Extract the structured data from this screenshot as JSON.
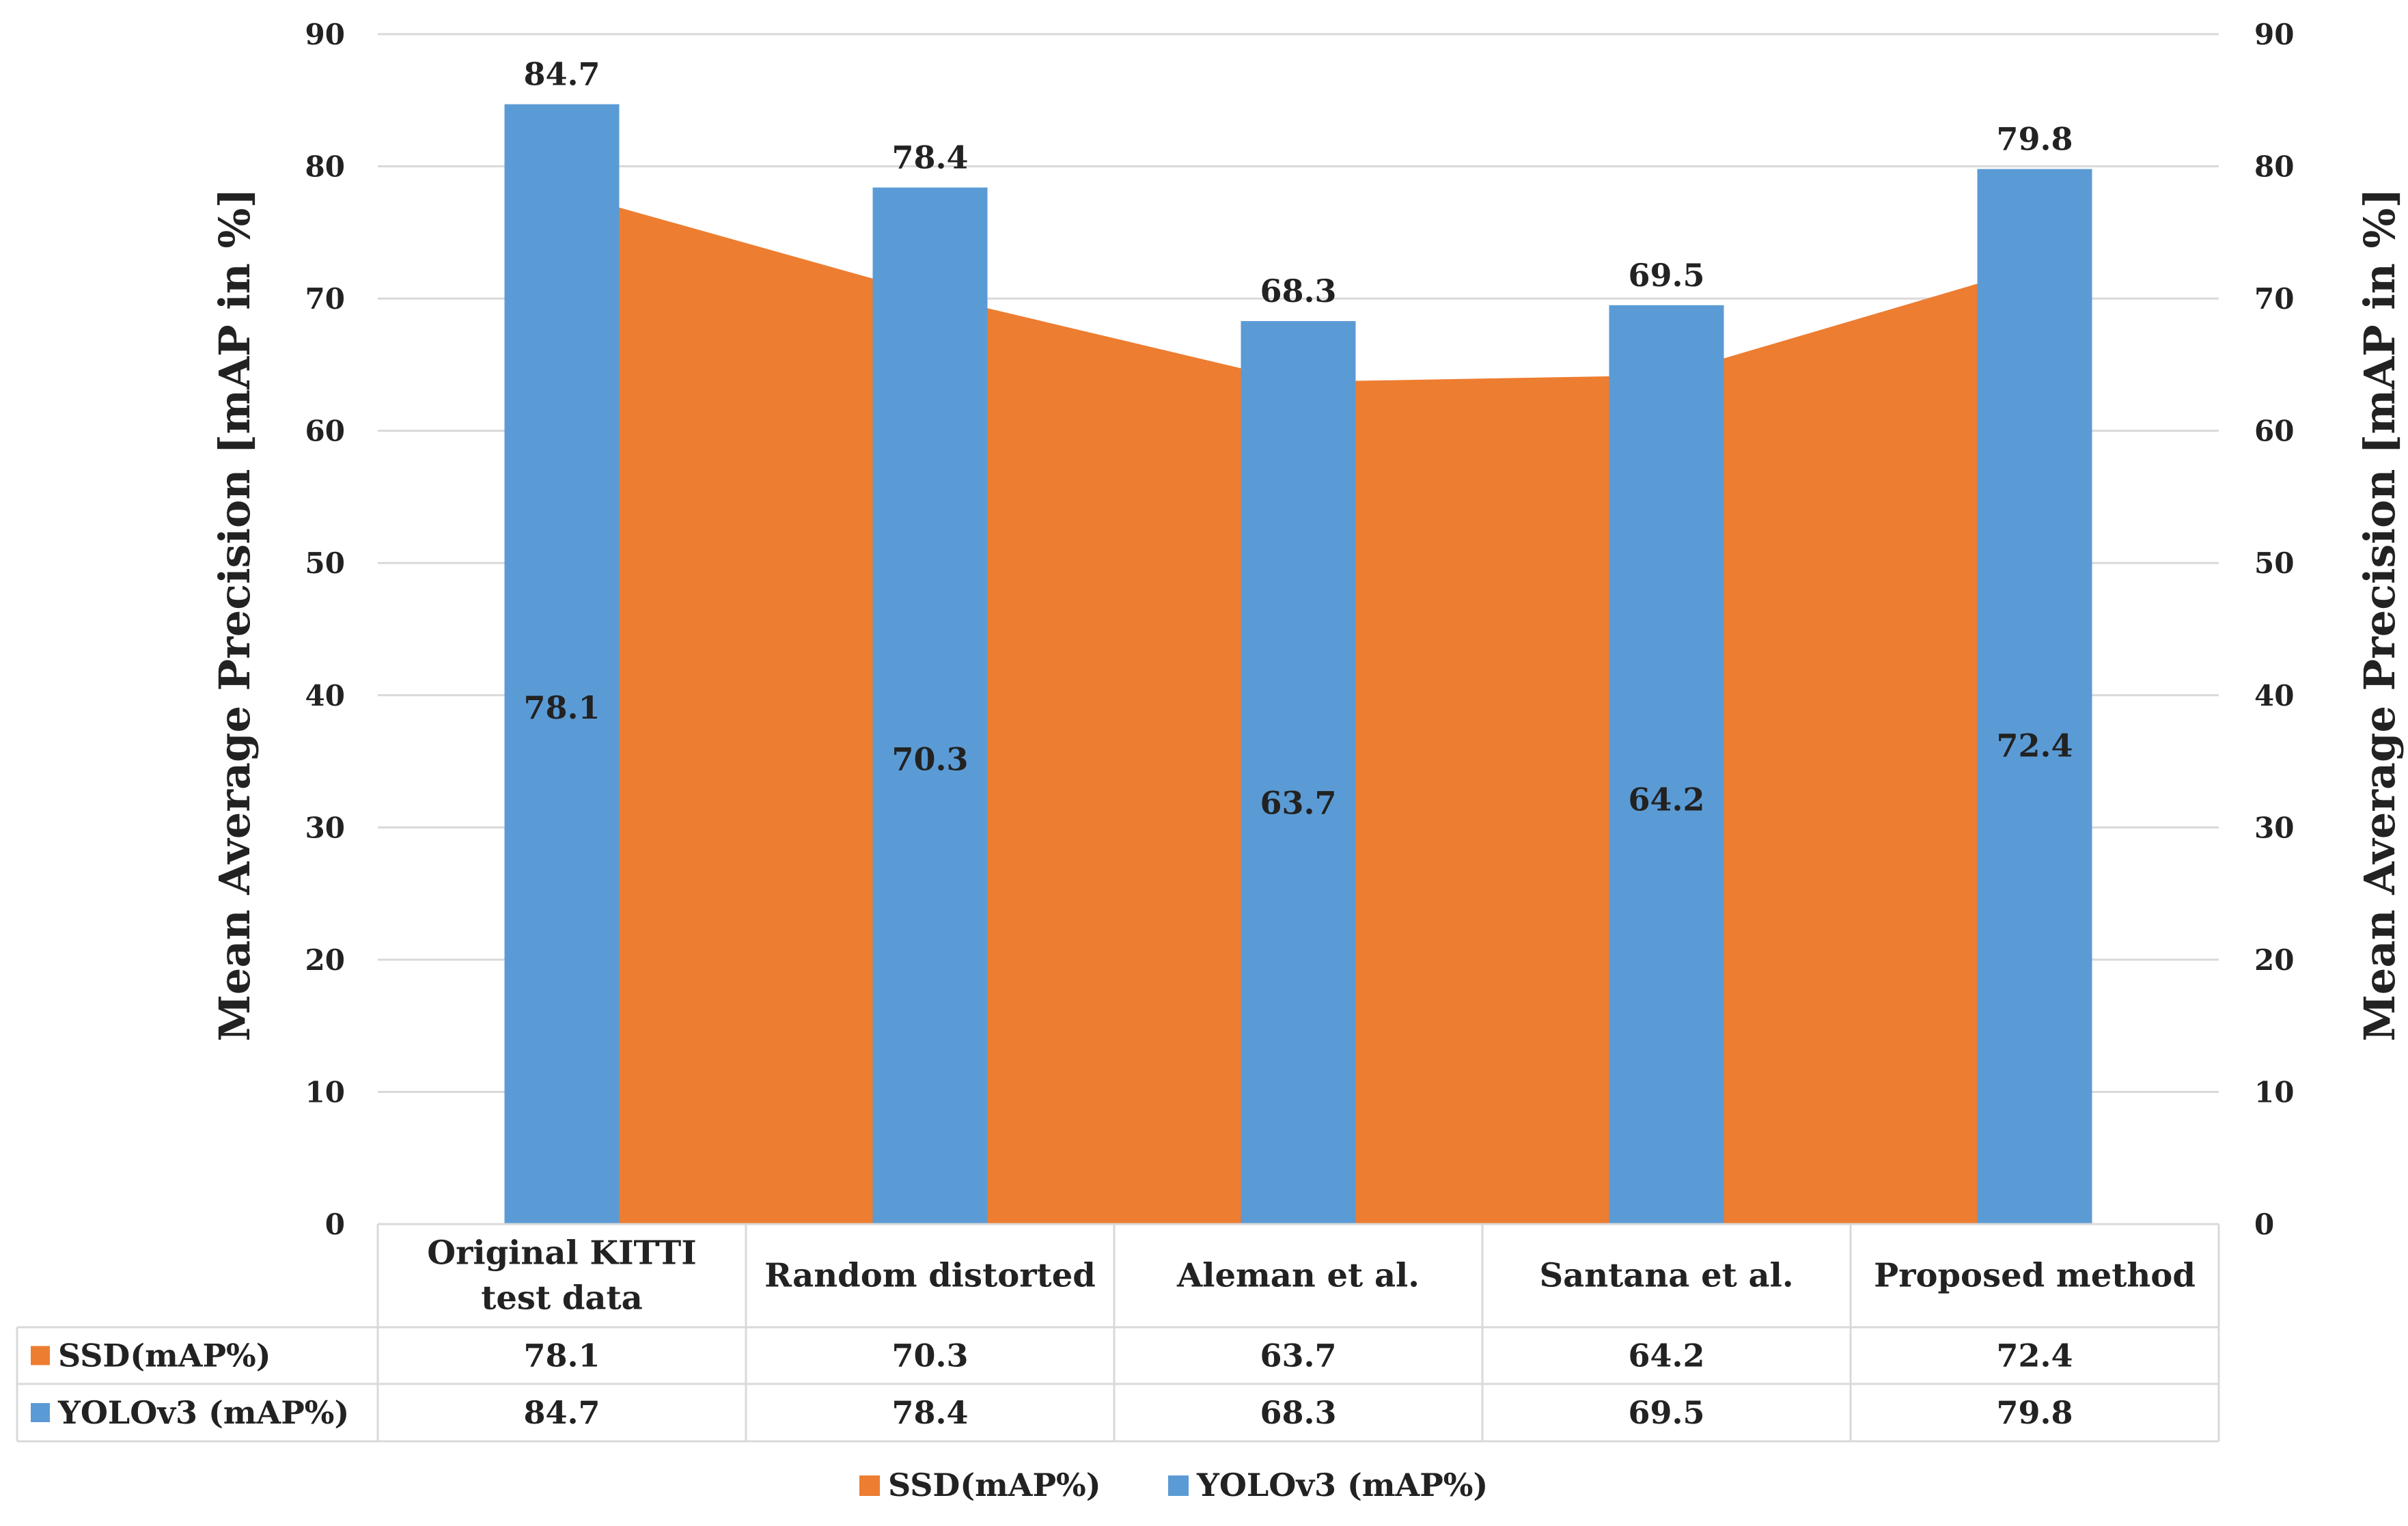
{
  "chart_data": {
    "type": "bar",
    "title": "",
    "categories": [
      [
        "Original KITTI",
        "test data"
      ],
      [
        "Random distorted"
      ],
      [
        "Aleman et al."
      ],
      [
        "Santana et al."
      ],
      [
        "Proposed method"
      ]
    ],
    "series": [
      {
        "name": "SSD(mAP%)",
        "render": "area",
        "color": "#ED7D31",
        "values": [
          78.1,
          70.3,
          63.7,
          64.2,
          72.4
        ]
      },
      {
        "name": "YOLOv3 (mAP%)",
        "render": "bar",
        "color": "#5B9BD5",
        "values": [
          84.7,
          78.4,
          68.3,
          69.5,
          79.8
        ]
      }
    ],
    "ylabel": "Mean Average Precision [mAP in %]",
    "ylabel_secondary": "Mean Average Precision [mAP in %]",
    "ylim": [
      0,
      90
    ],
    "yticks": [
      0,
      10,
      20,
      30,
      40,
      50,
      60,
      70,
      80,
      90
    ],
    "grid": true,
    "legend": "bottom-center",
    "data_table": true
  }
}
